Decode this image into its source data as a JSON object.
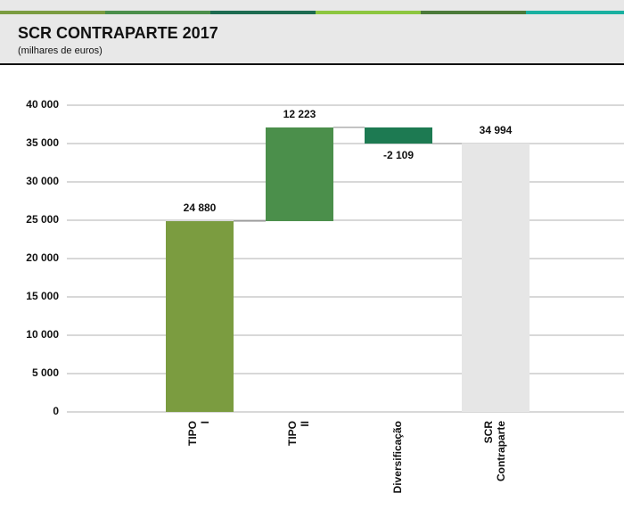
{
  "chart_data": {
    "type": "waterfall",
    "title": "SCR CONTRAPARTE 2017",
    "subtitle": "(milhares de euros)",
    "categories": [
      "TIPO I",
      "TIPO II",
      "Diversificação",
      "SCR Contraparte"
    ],
    "values": [
      24880,
      12223,
      -2109,
      34994
    ],
    "value_labels": [
      "24 880",
      "12 223",
      "-2 109",
      "34 994"
    ],
    "is_total": [
      false,
      false,
      false,
      true
    ],
    "colors": [
      "#7b9c40",
      "#4b8f4b",
      "#1d7a52",
      "#e6e6e6"
    ],
    "ylim": [
      0,
      40000
    ],
    "yticks": [
      0,
      {
        "value": 5000,
        "label": "5 000"
      },
      {
        "value": 10000,
        "label": "10 000"
      },
      {
        "value": 15000,
        "label": "15 000"
      },
      {
        "value": 20000,
        "label": "20 000"
      },
      {
        "value": 25000,
        "label": "25 000"
      },
      {
        "value": 30000,
        "label": "30 000"
      },
      {
        "value": 35000,
        "label": "35 000"
      },
      {
        "value": 40000,
        "label": "40 000"
      }
    ],
    "grid": true
  }
}
